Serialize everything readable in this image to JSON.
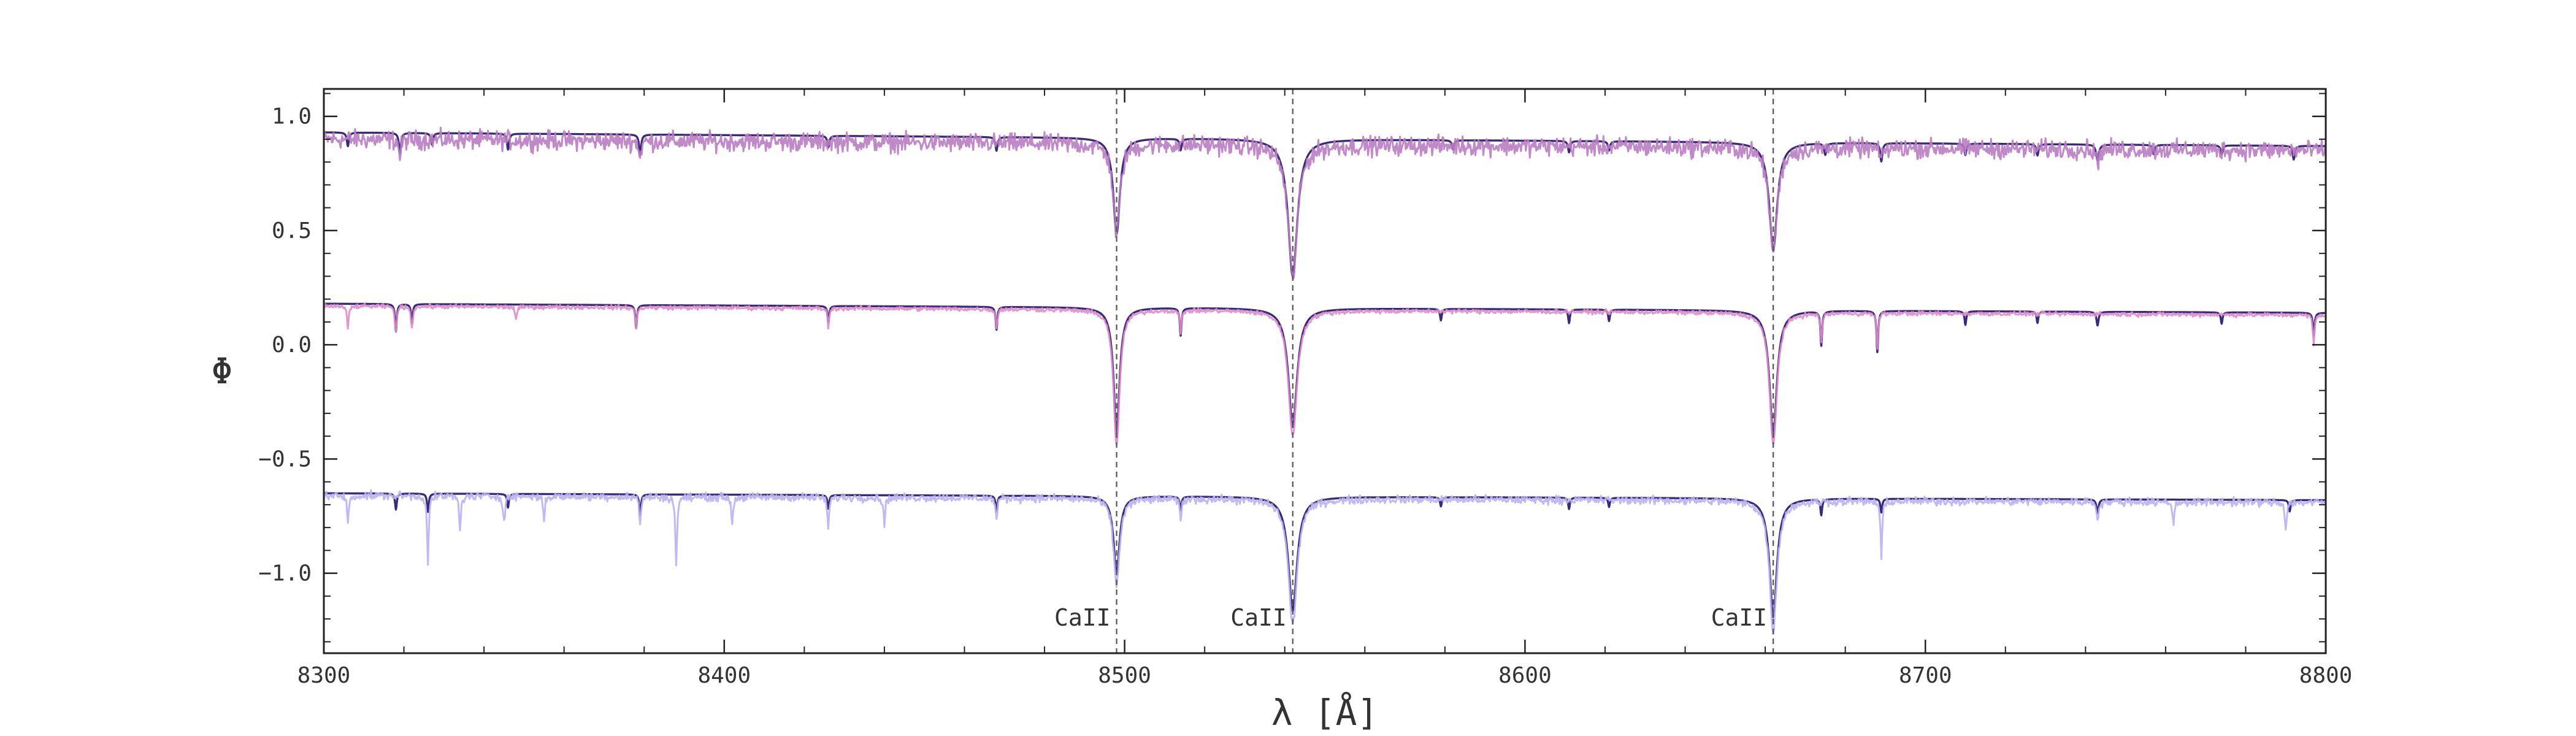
{
  "chart_data": {
    "type": "line",
    "title": "",
    "xlabel": "λ [Å]",
    "ylabel": "Φ",
    "xlim": [
      8300,
      8800
    ],
    "ylim": [
      -1.35,
      1.12
    ],
    "x_ticks": [
      8300,
      8400,
      8500,
      8600,
      8700,
      8800
    ],
    "x_tick_labels": [
      "8300",
      "8400",
      "8500",
      "8600",
      "8700",
      "8800"
    ],
    "y_ticks": [
      1.0,
      0.5,
      0.0,
      -0.5,
      -1.0
    ],
    "y_tick_labels": [
      "1.0",
      "0.5",
      "0.0",
      "−0.5",
      "−1.0"
    ],
    "grid": false,
    "legend": "none",
    "colors": {
      "model": "#3b2a78",
      "obs_top": "#b97cc2",
      "obs_mid": "#dd8ccb",
      "obs_bottom": "#b9b3f0",
      "vline": "#555555"
    },
    "annotations": [
      {
        "text": "CaII",
        "x": 8498.0
      },
      {
        "text": "CaII",
        "x": 8542.0
      },
      {
        "text": "CaII",
        "x": 8662.0
      }
    ],
    "vlines_x": [
      8498.0,
      8542.0,
      8662.0
    ],
    "series": [
      {
        "kind": "model",
        "color_key": "model",
        "continuum": [
          [
            8300,
            0.93
          ],
          [
            8800,
            0.87
          ]
        ],
        "lines": [
          [
            8498,
            0.42,
            1.0
          ],
          [
            8542,
            0.6,
            1.4
          ],
          [
            8662,
            0.47,
            1.2
          ],
          [
            8306,
            0.06,
            0.3
          ],
          [
            8319,
            0.09,
            0.3
          ],
          [
            8327,
            0.05,
            0.3
          ],
          [
            8346,
            0.07,
            0.3
          ],
          [
            8379,
            0.09,
            0.3
          ],
          [
            8426,
            0.05,
            0.3
          ],
          [
            8468,
            0.06,
            0.3
          ],
          [
            8514,
            0.05,
            0.3
          ],
          [
            8582,
            0.04,
            0.3
          ],
          [
            8611,
            0.05,
            0.3
          ],
          [
            8621,
            0.04,
            0.3
          ],
          [
            8675,
            0.05,
            0.3
          ],
          [
            8689,
            0.08,
            0.3
          ],
          [
            8710,
            0.05,
            0.3
          ],
          [
            8728,
            0.05,
            0.3
          ],
          [
            8743,
            0.07,
            0.4
          ],
          [
            8757,
            0.04,
            0.3
          ],
          [
            8774,
            0.04,
            0.3
          ],
          [
            8792,
            0.06,
            0.3
          ]
        ]
      },
      {
        "kind": "obs",
        "color_key": "obs_top",
        "noise": 0.035,
        "continuum": [
          [
            8300,
            0.9
          ],
          [
            8800,
            0.85
          ]
        ],
        "lines": [
          [
            8498,
            0.4,
            1.0
          ],
          [
            8542,
            0.58,
            1.4
          ],
          [
            8662,
            0.45,
            1.2
          ],
          [
            8319,
            0.08,
            0.3
          ],
          [
            8379,
            0.08,
            0.3
          ],
          [
            8689,
            0.07,
            0.3
          ],
          [
            8743,
            0.06,
            0.4
          ]
        ]
      },
      {
        "kind": "model",
        "color_key": "model",
        "continuum": [
          [
            8300,
            0.18
          ],
          [
            8800,
            0.14
          ]
        ],
        "lines": [
          [
            8498,
            0.55,
            0.9
          ],
          [
            8542,
            0.52,
            1.3
          ],
          [
            8662,
            0.55,
            1.1
          ],
          [
            8318,
            0.12,
            0.25
          ],
          [
            8322,
            0.08,
            0.25
          ],
          [
            8378,
            0.1,
            0.25
          ],
          [
            8426,
            0.07,
            0.25
          ],
          [
            8468,
            0.1,
            0.25
          ],
          [
            8514,
            0.12,
            0.25
          ],
          [
            8579,
            0.05,
            0.25
          ],
          [
            8611,
            0.06,
            0.25
          ],
          [
            8621,
            0.05,
            0.25
          ],
          [
            8674,
            0.15,
            0.25
          ],
          [
            8688,
            0.18,
            0.25
          ],
          [
            8710,
            0.06,
            0.25
          ],
          [
            8728,
            0.05,
            0.25
          ],
          [
            8743,
            0.06,
            0.3
          ],
          [
            8774,
            0.05,
            0.25
          ],
          [
            8797,
            0.1,
            0.25
          ]
        ]
      },
      {
        "kind": "obs",
        "color_key": "obs_mid",
        "noise": 0.008,
        "continuum": [
          [
            8300,
            0.17
          ],
          [
            8800,
            0.13
          ]
        ],
        "lines": [
          [
            8498,
            0.6,
            0.9
          ],
          [
            8542,
            0.55,
            1.3
          ],
          [
            8662,
            0.58,
            1.1
          ],
          [
            8306,
            0.1,
            0.25
          ],
          [
            8318,
            0.12,
            0.25
          ],
          [
            8322,
            0.1,
            0.25
          ],
          [
            8348,
            0.06,
            0.25
          ],
          [
            8378,
            0.09,
            0.25
          ],
          [
            8426,
            0.08,
            0.25
          ],
          [
            8468,
            0.08,
            0.25
          ],
          [
            8514,
            0.1,
            0.25
          ],
          [
            8674,
            0.12,
            0.25
          ],
          [
            8688,
            0.15,
            0.25
          ],
          [
            8797,
            0.13,
            0.25
          ]
        ]
      },
      {
        "kind": "model",
        "color_key": "model",
        "continuum": [
          [
            8300,
            -0.65
          ],
          [
            8800,
            -0.68
          ]
        ],
        "lines": [
          [
            8498,
            0.34,
            0.9
          ],
          [
            8542,
            0.5,
            1.3
          ],
          [
            8662,
            0.52,
            1.1
          ],
          [
            8318,
            0.07,
            0.25
          ],
          [
            8326,
            0.08,
            0.25
          ],
          [
            8346,
            0.06,
            0.25
          ],
          [
            8379,
            0.09,
            0.25
          ],
          [
            8426,
            0.06,
            0.25
          ],
          [
            8468,
            0.07,
            0.25
          ],
          [
            8514,
            0.06,
            0.25
          ],
          [
            8579,
            0.04,
            0.25
          ],
          [
            8611,
            0.05,
            0.25
          ],
          [
            8621,
            0.04,
            0.25
          ],
          [
            8674,
            0.07,
            0.25
          ],
          [
            8689,
            0.06,
            0.25
          ],
          [
            8743,
            0.06,
            0.3
          ],
          [
            8791,
            0.05,
            0.25
          ]
        ]
      },
      {
        "kind": "obs",
        "color_key": "obs_bottom",
        "noise": 0.015,
        "continuum": [
          [
            8300,
            -0.66
          ],
          [
            8800,
            -0.69
          ]
        ],
        "lines": [
          [
            8498,
            0.38,
            0.9
          ],
          [
            8542,
            0.55,
            1.3
          ],
          [
            8662,
            0.57,
            1.1
          ],
          [
            8306,
            0.12,
            0.25
          ],
          [
            8326,
            0.28,
            0.25
          ],
          [
            8334,
            0.15,
            0.25
          ],
          [
            8345,
            0.12,
            0.25
          ],
          [
            8355,
            0.1,
            0.25
          ],
          [
            8379,
            0.12,
            0.25
          ],
          [
            8388,
            0.3,
            0.25
          ],
          [
            8402,
            0.12,
            0.25
          ],
          [
            8426,
            0.14,
            0.25
          ],
          [
            8440,
            0.12,
            0.25
          ],
          [
            8468,
            0.1,
            0.25
          ],
          [
            8514,
            0.1,
            0.25
          ],
          [
            8689,
            0.25,
            0.25
          ],
          [
            8743,
            0.08,
            0.3
          ],
          [
            8762,
            0.1,
            0.25
          ],
          [
            8790,
            0.12,
            0.25
          ]
        ]
      }
    ]
  }
}
